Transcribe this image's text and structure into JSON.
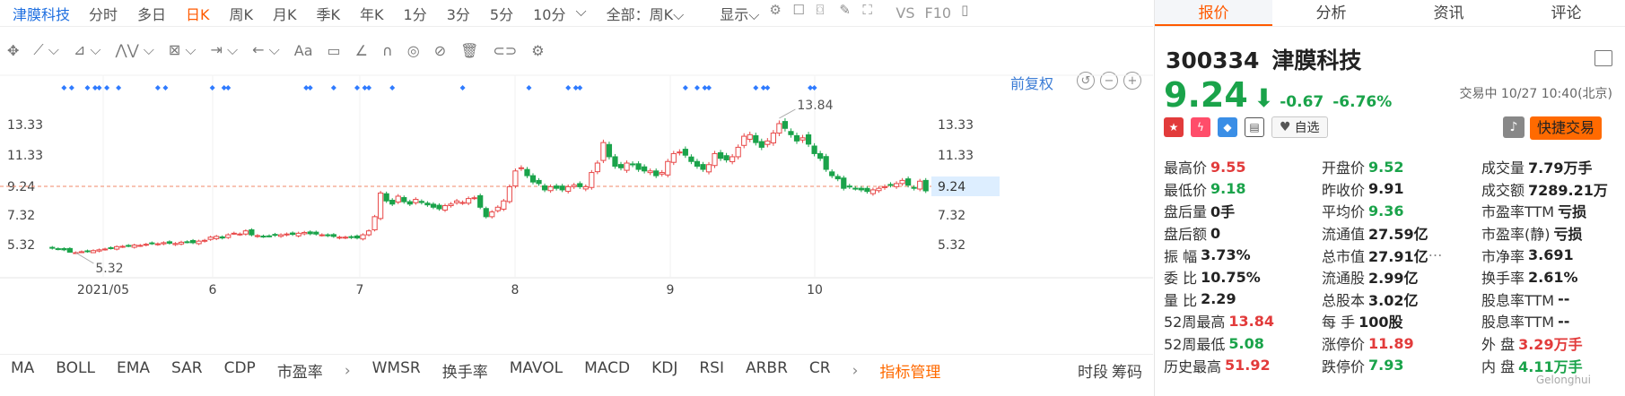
{
  "topbar": {
    "stock_name": "津膜科技",
    "periods": [
      "分时",
      "多日",
      "日K",
      "周K",
      "月K",
      "季K",
      "年K",
      "1分",
      "3分",
      "5分",
      "10分"
    ],
    "active_period": "日K",
    "scope": "全部：周K",
    "display": "显示",
    "vs": "VS",
    "f10": "F10"
  },
  "toolbar": {
    "text_tool": "Aa"
  },
  "chart": {
    "fuquan": "前复权",
    "x_labels": [
      "2021/05",
      "6",
      "7",
      "8",
      "9",
      "10"
    ],
    "y_labels": [
      "13.33",
      "11.33",
      "9.24",
      "7.32",
      "5.32"
    ],
    "current_price_tag": "9.24",
    "max_label": "13.84",
    "min_label": "5.32"
  },
  "chart_data": {
    "type": "candlestick",
    "x_ticks": [
      "2021/05",
      "6",
      "7",
      "8",
      "9",
      "10"
    ],
    "y_ticks": [
      13.33,
      11.33,
      9.24,
      7.32,
      5.32
    ],
    "high_marker": 13.84,
    "low_marker": 5.32,
    "last_price_line": 9.24,
    "closes": [
      5.6,
      5.55,
      5.5,
      5.35,
      5.32,
      5.38,
      5.4,
      5.45,
      5.5,
      5.55,
      5.6,
      5.7,
      5.72,
      5.75,
      5.8,
      5.78,
      5.85,
      5.9,
      5.88,
      5.95,
      5.92,
      5.9,
      5.98,
      6.0,
      5.95,
      6.05,
      6.1,
      6.3,
      6.35,
      6.25,
      6.45,
      6.55,
      6.5,
      6.7,
      6.45,
      6.4,
      6.35,
      6.38,
      6.42,
      6.45,
      6.5,
      6.48,
      6.55,
      6.6,
      6.52,
      6.5,
      6.45,
      6.4,
      6.35,
      6.3,
      6.3,
      6.28,
      6.25,
      6.45,
      6.7,
      7.6,
      9.1,
      8.6,
      8.4,
      8.9,
      8.55,
      8.4,
      8.7,
      8.5,
      8.35,
      8.2,
      8.1,
      8.3,
      8.4,
      8.6,
      8.5,
      8.75,
      8.8,
      8.2,
      7.6,
      7.9,
      8.2,
      8.6,
      9.5,
      10.5,
      10.7,
      10.2,
      9.8,
      9.7,
      9.3,
      9.5,
      9.4,
      9.3,
      9.5,
      9.6,
      9.5,
      9.5,
      10.4,
      11.0,
      12.3,
      11.4,
      10.8,
      10.7,
      11.0,
      10.9,
      10.6,
      10.5,
      10.5,
      10.2,
      10.4,
      11.1,
      11.6,
      11.7,
      11.5,
      11.1,
      10.8,
      10.6,
      10.9,
      11.6,
      11.3,
      11.2,
      11.4,
      12.0,
      12.7,
      12.8,
      12.3,
      12.0,
      12.4,
      12.9,
      13.5,
      13.2,
      12.8,
      12.4,
      12.6,
      12.2,
      11.6,
      11.3,
      10.6,
      10.2,
      10.0,
      9.4,
      9.5,
      9.4,
      9.3,
      9.2,
      9.3,
      9.4,
      9.5,
      9.6,
      9.7,
      9.9,
      9.6,
      9.4,
      9.85,
      9.24
    ]
  },
  "bottombar": {
    "indicators": [
      "MA",
      "BOLL",
      "EMA",
      "SAR",
      "CDP",
      "市盈率"
    ],
    "indicators2": [
      "WMSR",
      "换手率",
      "MAVOL",
      "MACD",
      "KDJ",
      "RSI",
      "ARBR",
      "CR"
    ],
    "manage": "指标管理",
    "timeseg": "时段",
    "chips": "筹码"
  },
  "right": {
    "tabs": [
      "报价",
      "分析",
      "资讯",
      "评论"
    ],
    "active_tab": "报价",
    "code": "300334",
    "name": "津膜科技",
    "price": "9.24",
    "change": "-0.67",
    "change_pct": "-6.76%",
    "status_time": "交易中 10/27 10:40(北京)",
    "watch_label": "自选",
    "quick_trade": "快捷交易",
    "watermark": "Gelonghui",
    "rows": [
      [
        [
          "最高价",
          "9.55",
          "red"
        ],
        [
          "开盘价",
          "9.52",
          "green"
        ],
        [
          "成交量",
          "7.79万手",
          ""
        ]
      ],
      [
        [
          "最低价",
          "9.18",
          "green"
        ],
        [
          "昨收价",
          "9.91",
          ""
        ],
        [
          "成交额",
          "7289.21万",
          ""
        ]
      ],
      [
        [
          "盘后量",
          "0手",
          ""
        ],
        [
          "平均价",
          "9.36",
          "green"
        ],
        [
          "市盈率TTM",
          "亏损",
          ""
        ]
      ],
      [
        [
          "盘后额",
          "0",
          ""
        ],
        [
          "流通值",
          "27.59亿",
          ""
        ],
        [
          "市盈率(静)",
          "亏损",
          ""
        ]
      ],
      [
        [
          "振    幅",
          "3.73%",
          ""
        ],
        [
          "总市值",
          "27.91亿",
          ""
        ],
        [
          "市净率",
          "3.691",
          ""
        ]
      ],
      [
        [
          "委    比",
          "10.75%",
          ""
        ],
        [
          "流通股",
          "2.99亿",
          ""
        ],
        [
          "换手率",
          "2.61%",
          ""
        ]
      ],
      [
        [
          "量    比",
          "2.29",
          ""
        ],
        [
          "总股本",
          "3.02亿",
          ""
        ],
        [
          "股息率TTM",
          "--",
          ""
        ]
      ],
      [
        [
          "52周最高",
          "13.84",
          "red"
        ],
        [
          "每    手",
          "100股",
          ""
        ],
        [
          "股息率TTM",
          "--",
          ""
        ]
      ],
      [
        [
          "52周最低",
          "5.08",
          "green"
        ],
        [
          "涨停价",
          "11.89",
          "red"
        ],
        [
          "外    盘",
          "3.29万手",
          "red"
        ]
      ],
      [
        [
          "历史最高",
          "51.92",
          "red"
        ],
        [
          "跌停价",
          "7.93",
          "green"
        ],
        [
          "内    盘",
          "4.11万手",
          "green"
        ]
      ]
    ]
  }
}
